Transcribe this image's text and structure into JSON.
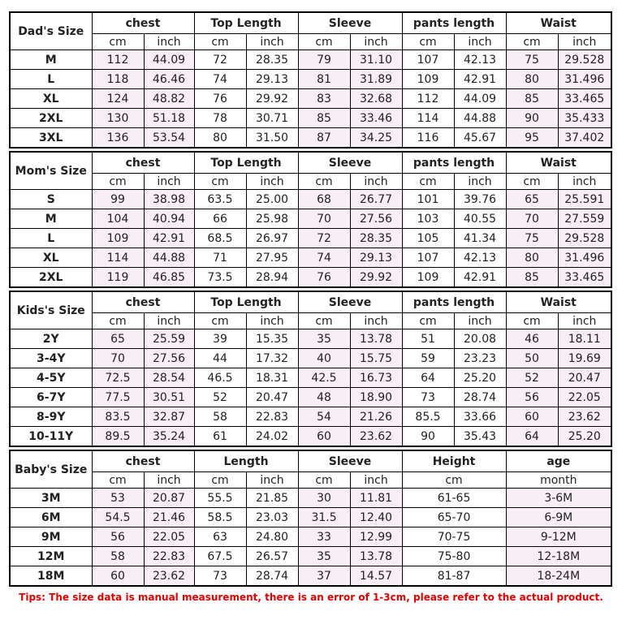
{
  "sections": [
    {
      "label": "Dad's Size",
      "groups": [
        "chest",
        "Top Length",
        "Sleeve",
        "pants length",
        "Waist"
      ],
      "units": [
        "cm",
        "inch",
        "cm",
        "inch",
        "cm",
        "inch",
        "cm",
        "inch",
        "cm",
        "inch"
      ],
      "rows": [
        {
          "size": "M",
          "values": [
            "112",
            "44.09",
            "72",
            "28.35",
            "79",
            "31.10",
            "107",
            "42.13",
            "75",
            "29.528"
          ]
        },
        {
          "size": "L",
          "values": [
            "118",
            "46.46",
            "74",
            "29.13",
            "81",
            "31.89",
            "109",
            "42.91",
            "80",
            "31.496"
          ]
        },
        {
          "size": "XL",
          "values": [
            "124",
            "48.82",
            "76",
            "29.92",
            "83",
            "32.68",
            "112",
            "44.09",
            "85",
            "33.465"
          ]
        },
        {
          "size": "2XL",
          "values": [
            "130",
            "51.18",
            "78",
            "30.71",
            "85",
            "33.46",
            "114",
            "44.88",
            "90",
            "35.433"
          ]
        },
        {
          "size": "3XL",
          "values": [
            "136",
            "53.54",
            "80",
            "31.50",
            "87",
            "34.25",
            "116",
            "45.67",
            "95",
            "37.402"
          ]
        }
      ]
    },
    {
      "label": "Mom's Size",
      "groups": [
        "chest",
        "Top Length",
        "Sleeve",
        "pants length",
        "Waist"
      ],
      "units": [
        "cm",
        "inch",
        "cm",
        "inch",
        "cm",
        "inch",
        "cm",
        "inch",
        "cm",
        "inch"
      ],
      "rows": [
        {
          "size": "S",
          "values": [
            "99",
            "38.98",
            "63.5",
            "25.00",
            "68",
            "26.77",
            "101",
            "39.76",
            "65",
            "25.591"
          ]
        },
        {
          "size": "M",
          "values": [
            "104",
            "40.94",
            "66",
            "25.98",
            "70",
            "27.56",
            "103",
            "40.55",
            "70",
            "27.559"
          ]
        },
        {
          "size": "L",
          "values": [
            "109",
            "42.91",
            "68.5",
            "26.97",
            "72",
            "28.35",
            "105",
            "41.34",
            "75",
            "29.528"
          ]
        },
        {
          "size": "XL",
          "values": [
            "114",
            "44.88",
            "71",
            "27.95",
            "74",
            "29.13",
            "107",
            "42.13",
            "80",
            "31.496"
          ]
        },
        {
          "size": "2XL",
          "values": [
            "119",
            "46.85",
            "73.5",
            "28.94",
            "76",
            "29.92",
            "109",
            "42.91",
            "85",
            "33.465"
          ]
        }
      ]
    },
    {
      "label": "Kids's Size",
      "groups": [
        "chest",
        "Top Length",
        "Sleeve",
        "pants length",
        "Waist"
      ],
      "units": [
        "cm",
        "inch",
        "cm",
        "inch",
        "cm",
        "inch",
        "cm",
        "inch",
        "cm",
        "inch"
      ],
      "rows": [
        {
          "size": "2Y",
          "values": [
            "65",
            "25.59",
            "39",
            "15.35",
            "35",
            "13.78",
            "51",
            "20.08",
            "46",
            "18.11"
          ]
        },
        {
          "size": "3-4Y",
          "values": [
            "70",
            "27.56",
            "44",
            "17.32",
            "40",
            "15.75",
            "59",
            "23.23",
            "50",
            "19.69"
          ]
        },
        {
          "size": "4-5Y",
          "values": [
            "72.5",
            "28.54",
            "46.5",
            "18.31",
            "42.5",
            "16.73",
            "64",
            "25.20",
            "52",
            "20.47"
          ]
        },
        {
          "size": "6-7Y",
          "values": [
            "77.5",
            "30.51",
            "52",
            "20.47",
            "48",
            "18.90",
            "73",
            "28.74",
            "56",
            "22.05"
          ]
        },
        {
          "size": "8-9Y",
          "values": [
            "83.5",
            "32.87",
            "58",
            "22.83",
            "54",
            "21.26",
            "85.5",
            "33.66",
            "60",
            "23.62"
          ]
        },
        {
          "size": "10-11Y",
          "values": [
            "89.5",
            "35.24",
            "61",
            "24.02",
            "60",
            "23.62",
            "90",
            "35.43",
            "64",
            "25.20"
          ]
        }
      ]
    },
    {
      "label": "Baby's Size",
      "groups": [
        "chest",
        "Length",
        "Sleeve",
        "Height",
        "age"
      ],
      "units": [
        "cm",
        "inch",
        "cm",
        "inch",
        "cm",
        "inch",
        "cm",
        "month"
      ],
      "rows": [
        {
          "size": "3M",
          "values": [
            "53",
            "20.87",
            "55.5",
            "21.85",
            "30",
            "11.81",
            "61-65",
            "3-6M"
          ]
        },
        {
          "size": "6M",
          "values": [
            "54.5",
            "21.46",
            "58.5",
            "23.03",
            "31.5",
            "12.40",
            "65-70",
            "6-9M"
          ]
        },
        {
          "size": "9M",
          "values": [
            "56",
            "22.05",
            "63",
            "24.80",
            "33",
            "12.99",
            "70-75",
            "9-12M"
          ]
        },
        {
          "size": "12M",
          "values": [
            "58",
            "22.83",
            "67.5",
            "26.57",
            "35",
            "13.78",
            "75-80",
            "12-18M"
          ]
        },
        {
          "size": "18M",
          "values": [
            "60",
            "23.62",
            "73",
            "28.74",
            "37",
            "14.57",
            "81-87",
            "18-24M"
          ]
        }
      ]
    }
  ],
  "tips": "Tips: The size data is manual measurement, there is an error of 1-3cm, please refer to the actual product.",
  "colors": {
    "shaded_cell": "#f7eef6",
    "tips_text": "#e00000",
    "border": "#000000"
  }
}
